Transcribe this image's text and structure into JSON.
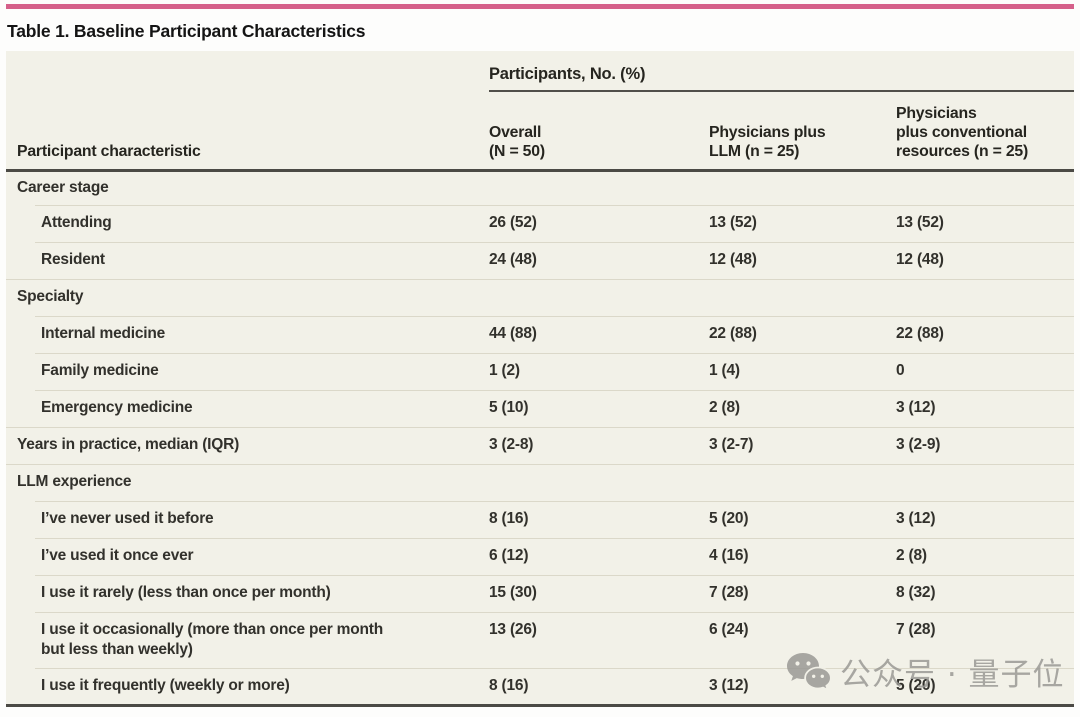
{
  "title": "Table 1. Baseline Participant Characteristics",
  "table": {
    "span_header": "Participants, No. (%)",
    "col1_header": "Participant characteristic",
    "columns": [
      [
        "Overall",
        "(N = 50)"
      ],
      [
        "Physicians plus",
        "LLM (n = 25)"
      ],
      [
        "Physicians",
        "plus conventional",
        "resources (n = 25)"
      ]
    ],
    "rows": [
      {
        "label_lines": [
          "Career stage"
        ],
        "indent": false,
        "tall": false,
        "values": [
          "",
          "",
          ""
        ]
      },
      {
        "label_lines": [
          "Attending"
        ],
        "indent": true,
        "tall": false,
        "values": [
          "26 (52)",
          "13 (52)",
          "13 (52)"
        ]
      },
      {
        "label_lines": [
          "Resident"
        ],
        "indent": true,
        "tall": false,
        "values": [
          "24 (48)",
          "12 (48)",
          "12 (48)"
        ]
      },
      {
        "label_lines": [
          "Specialty"
        ],
        "indent": false,
        "tall": false,
        "values": [
          "",
          "",
          ""
        ]
      },
      {
        "label_lines": [
          "Internal medicine"
        ],
        "indent": true,
        "tall": false,
        "values": [
          "44 (88)",
          "22 (88)",
          "22 (88)"
        ]
      },
      {
        "label_lines": [
          "Family medicine"
        ],
        "indent": true,
        "tall": false,
        "values": [
          "1 (2)",
          "1 (4)",
          "0"
        ]
      },
      {
        "label_lines": [
          "Emergency medicine"
        ],
        "indent": true,
        "tall": false,
        "values": [
          "5 (10)",
          "2 (8)",
          "3 (12)"
        ]
      },
      {
        "label_lines": [
          "Years in practice, median (IQR)"
        ],
        "indent": false,
        "tall": false,
        "values": [
          "3 (2-8)",
          "3 (2-7)",
          "3 (2-9)"
        ]
      },
      {
        "label_lines": [
          "LLM experience"
        ],
        "indent": false,
        "tall": false,
        "values": [
          "",
          "",
          ""
        ]
      },
      {
        "label_lines": [
          "I’ve never used it before"
        ],
        "indent": true,
        "tall": false,
        "values": [
          "8 (16)",
          "5 (20)",
          "3 (12)"
        ]
      },
      {
        "label_lines": [
          "I’ve used it once ever"
        ],
        "indent": true,
        "tall": false,
        "values": [
          "6 (12)",
          "4 (16)",
          "2 (8)"
        ]
      },
      {
        "label_lines": [
          "I use it rarely (less than once per month)"
        ],
        "indent": true,
        "tall": false,
        "values": [
          "15 (30)",
          "7 (28)",
          "8 (32)"
        ]
      },
      {
        "label_lines": [
          "I use it occasionally (more than once per month",
          "but less than weekly)"
        ],
        "indent": true,
        "tall": true,
        "values": [
          "13 (26)",
          "6 (24)",
          "7 (28)"
        ]
      },
      {
        "label_lines": [
          "I use it frequently (weekly or more)"
        ],
        "indent": true,
        "tall": false,
        "values": [
          "8 (16)",
          "3 (12)",
          "5 (20)"
        ]
      }
    ]
  },
  "watermark": {
    "icon": "wechat-icon",
    "text": "公众号 · 量子位"
  },
  "colors": {
    "accent": "#d5608a",
    "rule_dark": "#4b4a45",
    "table_background": "#f2f1e8",
    "row_separator": "#dbd8c9",
    "body_text": "#32312c",
    "watermark_gray": "#9a9995"
  }
}
